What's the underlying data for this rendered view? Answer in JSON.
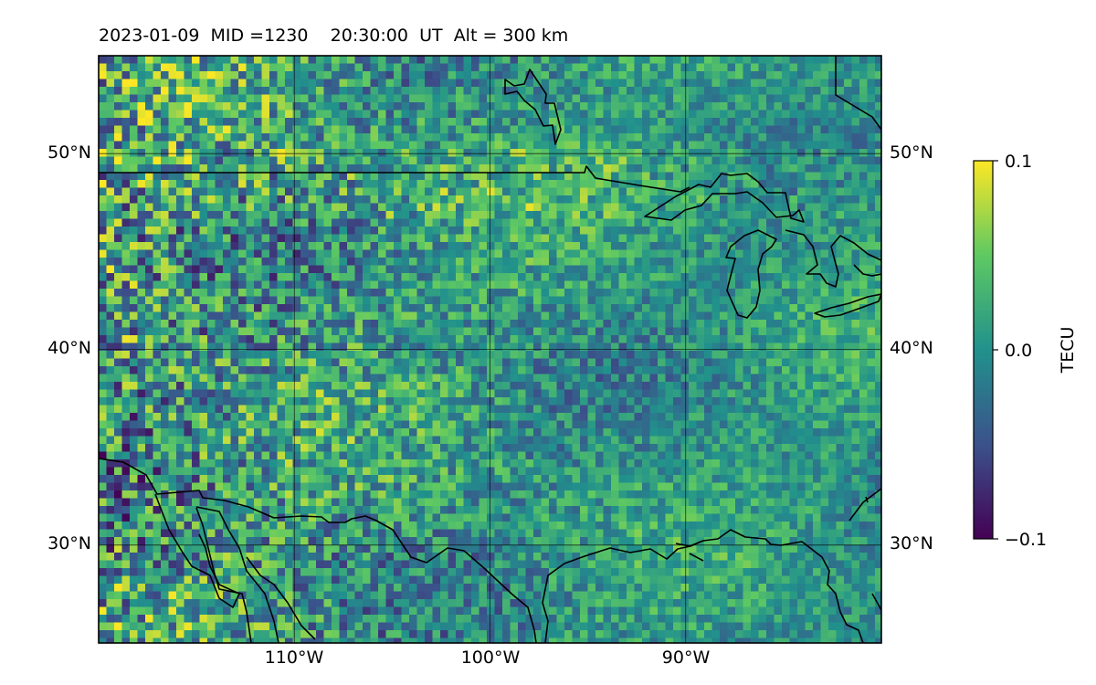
{
  "title": {
    "date": "2023-01-09",
    "mid_label": "MID =1230",
    "time": "20:30:00",
    "time_unit": "UT",
    "alt": "Alt = 300 km"
  },
  "map": {
    "lon_range": [
      -120,
      -80
    ],
    "lat_range": [
      25,
      55
    ],
    "lat_ticks": [
      {
        "value": 50,
        "label": "50°N"
      },
      {
        "value": 40,
        "label": "40°N"
      },
      {
        "value": 30,
        "label": "30°N"
      }
    ],
    "lon_ticks": [
      {
        "value": -110,
        "label": "110°W"
      },
      {
        "value": -100,
        "label": "100°W"
      },
      {
        "value": -90,
        "label": "90°W"
      }
    ],
    "grid": true,
    "field": "TEC perturbation"
  },
  "colorbar": {
    "label": "TECU",
    "min": -0.1,
    "max": 0.1,
    "ticks": [
      {
        "value": 0.1,
        "label": "0.1"
      },
      {
        "value": 0.0,
        "label": "0.0"
      },
      {
        "value": -0.1,
        "label": "−0.1"
      }
    ],
    "colormap": "viridis",
    "colors": [
      "#440154",
      "#3b528b",
      "#21918c",
      "#5ec962",
      "#fde725"
    ]
  }
}
